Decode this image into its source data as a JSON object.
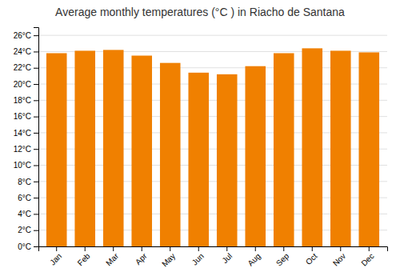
{
  "chart_data": {
    "type": "bar",
    "title": "Average monthly temperatures (°C ) in Riacho de Santana",
    "categories": [
      "Jan",
      "Feb",
      "Mar",
      "Apr",
      "May",
      "Jun",
      "Jul",
      "Aug",
      "Sep",
      "Oct",
      "Nov",
      "Dec"
    ],
    "values": [
      23.8,
      24.1,
      24.2,
      23.5,
      22.6,
      21.4,
      21.2,
      22.2,
      23.8,
      24.4,
      24.1,
      23.9
    ],
    "color": "#F08000",
    "ylim": [
      0,
      27
    ],
    "yticks": [
      {
        "value": 0,
        "label": "0°C"
      },
      {
        "value": 2,
        "label": "2°C"
      },
      {
        "value": 4,
        "label": "4°C"
      },
      {
        "value": 6,
        "label": "6°C"
      },
      {
        "value": 8,
        "label": "8°C"
      },
      {
        "value": 10,
        "label": "10°C"
      },
      {
        "value": 12,
        "label": "12°C"
      },
      {
        "value": 14,
        "label": "14°C"
      },
      {
        "value": 16,
        "label": "16°C"
      },
      {
        "value": 18,
        "label": "18°C"
      },
      {
        "value": 20,
        "label": "20°C"
      },
      {
        "value": 22,
        "label": "22°C"
      },
      {
        "value": 24,
        "label": "24°C"
      },
      {
        "value": 26,
        "label": "26°C"
      }
    ],
    "grid": true
  }
}
